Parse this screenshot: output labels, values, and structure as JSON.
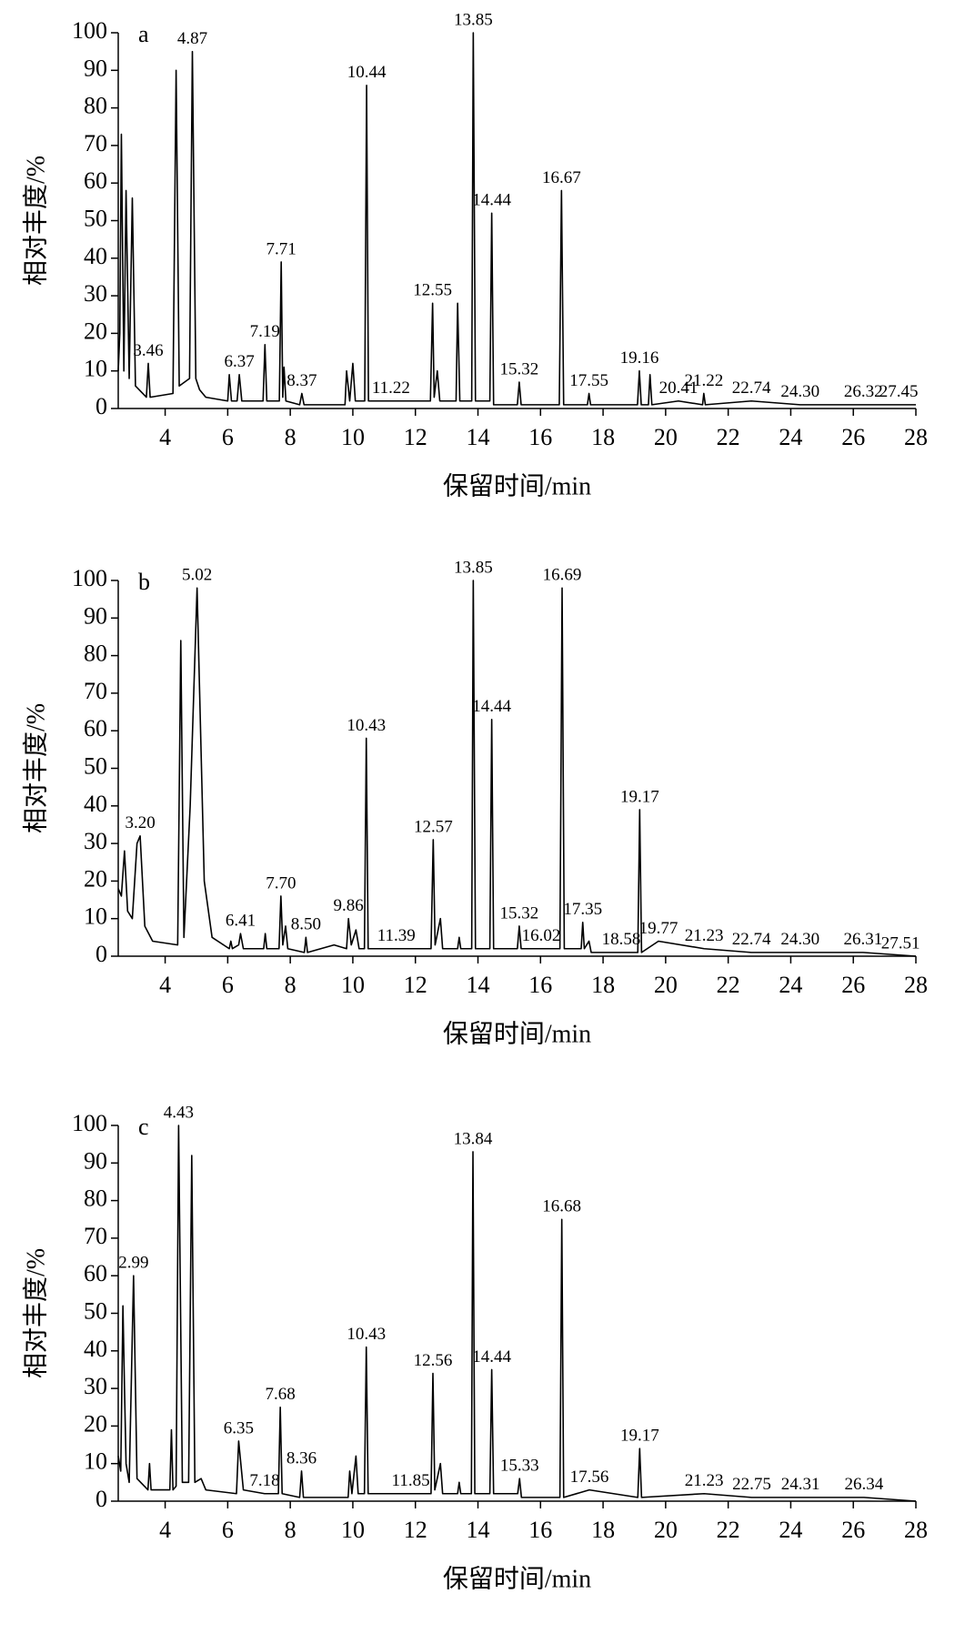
{
  "chart_data": [
    {
      "type": "line",
      "panel_label": "a",
      "xlabel": "保留时间/min",
      "ylabel": "相对丰度/%",
      "xlim": [
        2.5,
        28
      ],
      "ylim": [
        0,
        100
      ],
      "xticks": [
        4,
        6,
        8,
        10,
        12,
        14,
        16,
        18,
        20,
        22,
        24,
        26,
        28
      ],
      "yticks": [
        0,
        10,
        20,
        30,
        40,
        50,
        60,
        70,
        80,
        90,
        100
      ],
      "color": "#000000",
      "x": [
        2.5,
        2.55,
        2.6,
        2.68,
        2.75,
        2.85,
        2.95,
        3.05,
        3.4,
        3.46,
        3.52,
        4.25,
        4.35,
        4.45,
        4.78,
        4.87,
        4.98,
        5.1,
        5.3,
        6.0,
        6.05,
        6.12,
        6.3,
        6.37,
        6.45,
        7.13,
        7.19,
        7.25,
        7.65,
        7.71,
        7.76,
        7.8,
        7.86,
        8.3,
        8.37,
        8.44,
        9.75,
        9.8,
        9.9,
        10.0,
        10.08,
        10.38,
        10.44,
        10.5,
        11.22,
        12.48,
        12.55,
        12.6,
        12.7,
        12.78,
        13.3,
        13.35,
        13.42,
        13.8,
        13.85,
        13.92,
        14.38,
        14.44,
        14.5,
        15.26,
        15.32,
        15.38,
        16.6,
        16.67,
        16.74,
        17.5,
        17.55,
        17.6,
        19.1,
        19.16,
        19.22,
        19.45,
        19.5,
        19.56,
        20.41,
        21.18,
        21.22,
        21.27,
        22.74,
        24.3,
        26.32,
        28
      ],
      "values": [
        10,
        20,
        73,
        10,
        58,
        8,
        56,
        6,
        3,
        12,
        3,
        4,
        90,
        6,
        8,
        95,
        8,
        5,
        3,
        2,
        9,
        2,
        2,
        9,
        2,
        2,
        17,
        2,
        2,
        39,
        3,
        11,
        2,
        1,
        4,
        1,
        1,
        10,
        2,
        12,
        2,
        2,
        86,
        2,
        2,
        2,
        28,
        3,
        10,
        2,
        2,
        28,
        2,
        2,
        100,
        2,
        2,
        52,
        1,
        1,
        7,
        1,
        1,
        58,
        1,
        1,
        4,
        1,
        1,
        10,
        1,
        1,
        9,
        1,
        2,
        1,
        4,
        1,
        2,
        1,
        1,
        1
      ],
      "annotations": [
        {
          "x": 3.46,
          "y": 12,
          "label": "3.46"
        },
        {
          "x": 4.87,
          "y": 95,
          "label": "4.87"
        },
        {
          "x": 6.37,
          "y": 9,
          "label": "6.37"
        },
        {
          "x": 7.19,
          "y": 17,
          "label": "7.19"
        },
        {
          "x": 7.71,
          "y": 39,
          "label": "7.71"
        },
        {
          "x": 8.37,
          "y": 4,
          "label": "8.37"
        },
        {
          "x": 10.44,
          "y": 86,
          "label": "10.44"
        },
        {
          "x": 11.22,
          "y": 2,
          "label": "11.22"
        },
        {
          "x": 12.55,
          "y": 28,
          "label": "12.55"
        },
        {
          "x": 13.85,
          "y": 100,
          "label": "13.85"
        },
        {
          "x": 14.44,
          "y": 52,
          "label": "14.44"
        },
        {
          "x": 15.32,
          "y": 7,
          "label": "15.32"
        },
        {
          "x": 16.67,
          "y": 58,
          "label": "16.67"
        },
        {
          "x": 17.55,
          "y": 4,
          "label": "17.55"
        },
        {
          "x": 19.16,
          "y": 10,
          "label": "19.16"
        },
        {
          "x": 20.41,
          "y": 2,
          "label": "20.41"
        },
        {
          "x": 21.22,
          "y": 4,
          "label": "21.22"
        },
        {
          "x": 22.74,
          "y": 2,
          "label": "22.74"
        },
        {
          "x": 24.3,
          "y": 1,
          "label": "24.30"
        },
        {
          "x": 26.32,
          "y": 1,
          "label": "26.32"
        },
        {
          "x": 27.45,
          "y": 1,
          "label": "27.45"
        }
      ]
    },
    {
      "type": "line",
      "panel_label": "b",
      "xlabel": "保留时间/min",
      "ylabel": "相对丰度/%",
      "xlim": [
        2.5,
        28
      ],
      "ylim": [
        0,
        100
      ],
      "xticks": [
        4,
        6,
        8,
        10,
        12,
        14,
        16,
        18,
        20,
        22,
        24,
        26,
        28
      ],
      "yticks": [
        0,
        10,
        20,
        30,
        40,
        50,
        60,
        70,
        80,
        90,
        100
      ],
      "color": "#000000",
      "x": [
        2.5,
        2.6,
        2.7,
        2.8,
        2.95,
        3.1,
        3.2,
        3.35,
        3.6,
        4.4,
        4.5,
        4.6,
        4.8,
        5.02,
        5.25,
        5.5,
        6.05,
        6.1,
        6.15,
        6.35,
        6.41,
        6.5,
        7.15,
        7.2,
        7.25,
        7.64,
        7.7,
        7.76,
        7.85,
        7.92,
        8.45,
        8.5,
        8.55,
        9.4,
        9.8,
        9.86,
        9.95,
        10.1,
        10.2,
        10.37,
        10.43,
        10.49,
        11.39,
        12.5,
        12.57,
        12.63,
        12.8,
        12.87,
        13.35,
        13.4,
        13.45,
        13.8,
        13.85,
        13.92,
        14.38,
        14.44,
        14.5,
        15.26,
        15.32,
        15.38,
        16.02,
        16.62,
        16.69,
        16.76,
        17.3,
        17.35,
        17.4,
        17.55,
        17.62,
        18.58,
        19.11,
        19.17,
        19.23,
        19.77,
        21.23,
        22.74,
        24.3,
        26.31,
        28
      ],
      "values": [
        18,
        16,
        28,
        12,
        10,
        30,
        32,
        8,
        4,
        3,
        84,
        5,
        40,
        98,
        20,
        5,
        2,
        4,
        2,
        3,
        6,
        2,
        2,
        6,
        2,
        2,
        16,
        3,
        8,
        2,
        1,
        5,
        1,
        3,
        2,
        10,
        3,
        7,
        2,
        2,
        58,
        2,
        2,
        2,
        31,
        3,
        10,
        2,
        2,
        5,
        2,
        2,
        100,
        2,
        2,
        63,
        2,
        2,
        8,
        2,
        2,
        2,
        98,
        2,
        2,
        9,
        2,
        4,
        1,
        1,
        1,
        39,
        1,
        4,
        2,
        1,
        1,
        1,
        0
      ],
      "annotations": [
        {
          "x": 3.2,
          "y": 32,
          "label": "3.20"
        },
        {
          "x": 5.02,
          "y": 98,
          "label": "5.02"
        },
        {
          "x": 6.41,
          "y": 6,
          "label": "6.41"
        },
        {
          "x": 7.7,
          "y": 16,
          "label": "7.70"
        },
        {
          "x": 8.5,
          "y": 5,
          "label": "8.50"
        },
        {
          "x": 9.86,
          "y": 10,
          "label": "9.86"
        },
        {
          "x": 10.43,
          "y": 58,
          "label": "10.43"
        },
        {
          "x": 11.39,
          "y": 2,
          "label": "11.39"
        },
        {
          "x": 12.57,
          "y": 31,
          "label": "12.57"
        },
        {
          "x": 13.85,
          "y": 100,
          "label": "13.85"
        },
        {
          "x": 14.44,
          "y": 63,
          "label": "14.44"
        },
        {
          "x": 15.32,
          "y": 8,
          "label": "15.32"
        },
        {
          "x": 16.02,
          "y": 2,
          "label": "16.02"
        },
        {
          "x": 16.69,
          "y": 98,
          "label": "16.69"
        },
        {
          "x": 17.35,
          "y": 9,
          "label": "17.35"
        },
        {
          "x": 18.58,
          "y": 1,
          "label": "18.58"
        },
        {
          "x": 19.17,
          "y": 39,
          "label": "19.17"
        },
        {
          "x": 19.77,
          "y": 4,
          "label": "19.77"
        },
        {
          "x": 21.23,
          "y": 2,
          "label": "21.23"
        },
        {
          "x": 22.74,
          "y": 1,
          "label": "22.74"
        },
        {
          "x": 24.3,
          "y": 1,
          "label": "24.30"
        },
        {
          "x": 26.31,
          "y": 1,
          "label": "26.31"
        },
        {
          "x": 27.51,
          "y": 0,
          "label": "27.51"
        }
      ]
    },
    {
      "type": "line",
      "panel_label": "c",
      "xlabel": "保留时间/min",
      "ylabel": "相对丰度/%",
      "xlim": [
        2.5,
        28
      ],
      "ylim": [
        0,
        100
      ],
      "xticks": [
        4,
        6,
        8,
        10,
        12,
        14,
        16,
        18,
        20,
        22,
        24,
        26,
        28
      ],
      "yticks": [
        0,
        10,
        20,
        30,
        40,
        50,
        60,
        70,
        80,
        90,
        100
      ],
      "color": "#000000",
      "x": [
        2.5,
        2.58,
        2.65,
        2.7,
        2.75,
        2.85,
        2.99,
        3.1,
        3.45,
        3.5,
        3.55,
        4.15,
        4.2,
        4.25,
        4.35,
        4.43,
        4.55,
        4.75,
        4.85,
        4.95,
        5.15,
        5.3,
        6.28,
        6.35,
        6.5,
        7.18,
        7.62,
        7.68,
        7.74,
        8.3,
        8.36,
        8.42,
        9.85,
        9.9,
        9.97,
        10.1,
        10.17,
        10.37,
        10.43,
        10.49,
        11.85,
        12.5,
        12.56,
        12.62,
        12.8,
        12.87,
        13.35,
        13.4,
        13.45,
        13.79,
        13.84,
        13.9,
        14.38,
        14.44,
        14.5,
        15.27,
        15.33,
        15.39,
        16.62,
        16.68,
        16.74,
        17.56,
        19.11,
        19.17,
        19.23,
        21.23,
        22.75,
        24.31,
        26.34,
        28
      ],
      "values": [
        12,
        8,
        52,
        30,
        10,
        5,
        60,
        6,
        3,
        10,
        3,
        3,
        19,
        3,
        4,
        100,
        5,
        5,
        92,
        5,
        6,
        3,
        2,
        16,
        3,
        2,
        2,
        25,
        2,
        1,
        8,
        1,
        1,
        8,
        2,
        12,
        2,
        2,
        41,
        2,
        2,
        2,
        34,
        3,
        10,
        2,
        2,
        5,
        2,
        2,
        93,
        2,
        2,
        35,
        2,
        2,
        6,
        1,
        1,
        75,
        1,
        3,
        1,
        14,
        1,
        2,
        1,
        1,
        1,
        0
      ],
      "annotations": [
        {
          "x": 2.99,
          "y": 60,
          "label": "2.99"
        },
        {
          "x": 4.43,
          "y": 100,
          "label": "4.43"
        },
        {
          "x": 6.35,
          "y": 16,
          "label": "6.35"
        },
        {
          "x": 7.18,
          "y": 2,
          "label": "7.18"
        },
        {
          "x": 7.68,
          "y": 25,
          "label": "7.68"
        },
        {
          "x": 8.36,
          "y": 8,
          "label": "8.36"
        },
        {
          "x": 10.43,
          "y": 41,
          "label": "10.43"
        },
        {
          "x": 11.85,
          "y": 2,
          "label": "11.85"
        },
        {
          "x": 12.56,
          "y": 34,
          "label": "12.56"
        },
        {
          "x": 13.84,
          "y": 93,
          "label": "13.84"
        },
        {
          "x": 14.44,
          "y": 35,
          "label": "14.44"
        },
        {
          "x": 15.33,
          "y": 6,
          "label": "15.33"
        },
        {
          "x": 16.68,
          "y": 75,
          "label": "16.68"
        },
        {
          "x": 17.56,
          "y": 3,
          "label": "17.56"
        },
        {
          "x": 19.17,
          "y": 14,
          "label": "19.17"
        },
        {
          "x": 21.23,
          "y": 2,
          "label": "21.23"
        },
        {
          "x": 22.75,
          "y": 1,
          "label": "22.75"
        },
        {
          "x": 24.31,
          "y": 1,
          "label": "24.31"
        },
        {
          "x": 26.34,
          "y": 1,
          "label": "26.34"
        }
      ]
    }
  ]
}
